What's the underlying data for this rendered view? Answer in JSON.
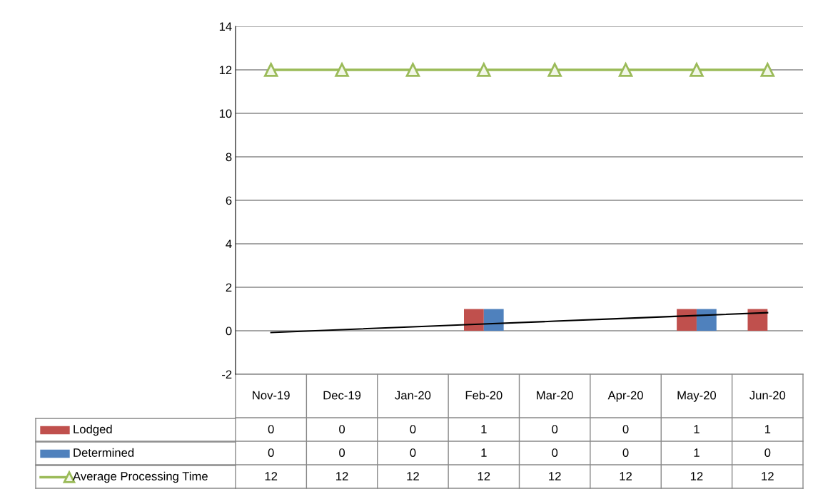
{
  "chart_data": {
    "type": "bar",
    "categories": [
      "Nov-19",
      "Dec-19",
      "Jan-20",
      "Feb-20",
      "Mar-20",
      "Apr-20",
      "May-20",
      "Jun-20"
    ],
    "series": [
      {
        "name": "Lodged",
        "color": "#c0504d",
        "values": [
          0,
          0,
          0,
          1,
          0,
          0,
          1,
          1
        ]
      },
      {
        "name": "Determined",
        "color": "#4f81bd",
        "values": [
          0,
          0,
          0,
          1,
          0,
          0,
          1,
          0
        ]
      },
      {
        "name": "Average Processing Time",
        "type": "line",
        "color": "#9bbb59",
        "marker": "triangle",
        "values": [
          12,
          12,
          12,
          12,
          12,
          12,
          12,
          12
        ]
      },
      {
        "type": "line",
        "color": "#000000",
        "values": [
          -0.08,
          0.05,
          0.18,
          0.31,
          0.44,
          0.57,
          0.7,
          0.83
        ],
        "value_labels": [
          null,
          null,
          null,
          null,
          null,
          null,
          null,
          null
        ]
      }
    ],
    "ylim": [
      -2,
      14
    ],
    "yticks": [
      -2,
      0,
      2,
      4,
      6,
      8,
      10,
      12,
      14
    ],
    "grid": "y",
    "data_labels": true,
    "legend": "bottom"
  }
}
